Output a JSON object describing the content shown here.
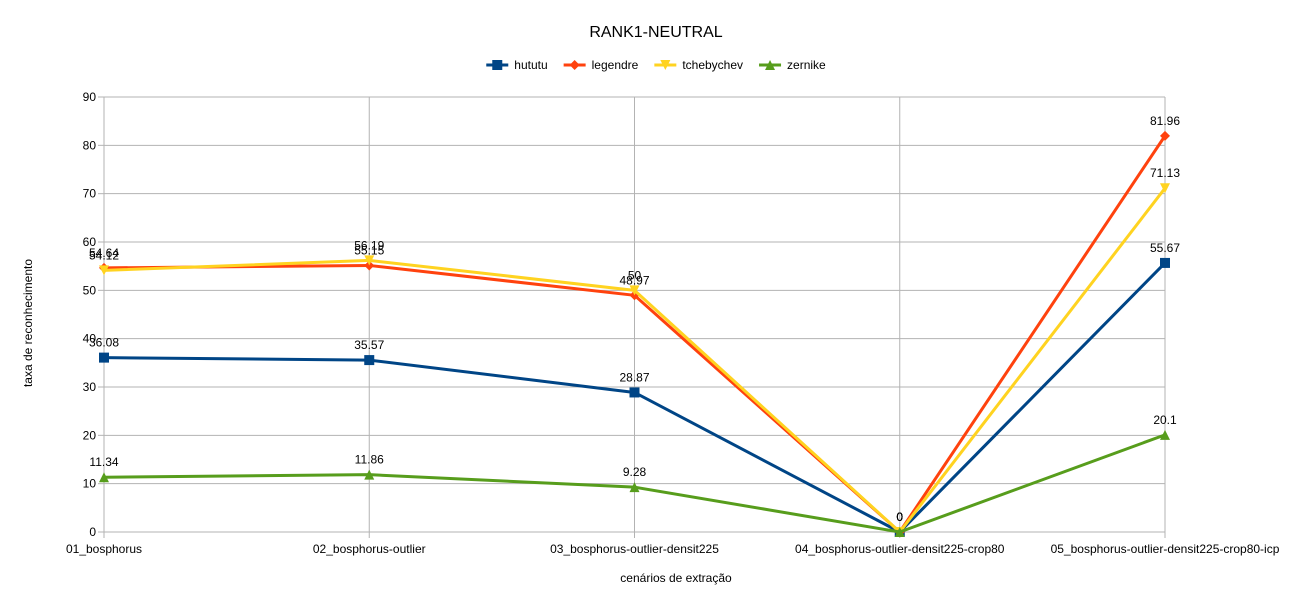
{
  "chart_data": {
    "type": "line",
    "title": "RANK1-NEUTRAL",
    "xlabel": "cenários de extração",
    "ylabel": "taxa de reconhecimento",
    "ylim": [
      0,
      90
    ],
    "yticks": [
      0,
      10,
      20,
      30,
      40,
      50,
      60,
      70,
      80,
      90
    ],
    "grid": true,
    "legend": "top-center",
    "categories": [
      "01_bosphorus",
      "02_bosphorus-outlier",
      "03_bosphorus-outlier-densit225",
      "04_bosphorus-outlier-densit225-crop80",
      "05_bosphorus-outlier-densit225-crop80-icp"
    ],
    "series": [
      {
        "name": "hututu",
        "color": "#004586",
        "marker": "square",
        "values": [
          36.08,
          35.57,
          28.87,
          0,
          55.67
        ],
        "labels": [
          "36.08",
          "35.57",
          "28.87",
          "0",
          "55.67"
        ]
      },
      {
        "name": "legendre",
        "color": "#ff420e",
        "marker": "diamond",
        "values": [
          54.64,
          55.15,
          48.97,
          0,
          81.96
        ],
        "labels": [
          "54.64",
          "55.15",
          "48.97",
          "0",
          "81.96"
        ]
      },
      {
        "name": "tchebychev",
        "color": "#ffd320",
        "marker": "triangle-down",
        "values": [
          54.12,
          56.19,
          50,
          0,
          71.13
        ],
        "labels": [
          "54.12",
          "56.19",
          "50",
          "0",
          "71.13"
        ]
      },
      {
        "name": "zernike",
        "color": "#579d1c",
        "marker": "triangle-up",
        "values": [
          11.34,
          11.86,
          9.28,
          0,
          20.1
        ],
        "labels": [
          "11.34",
          "11.86",
          "9.28",
          "0",
          "20.1"
        ]
      }
    ]
  }
}
